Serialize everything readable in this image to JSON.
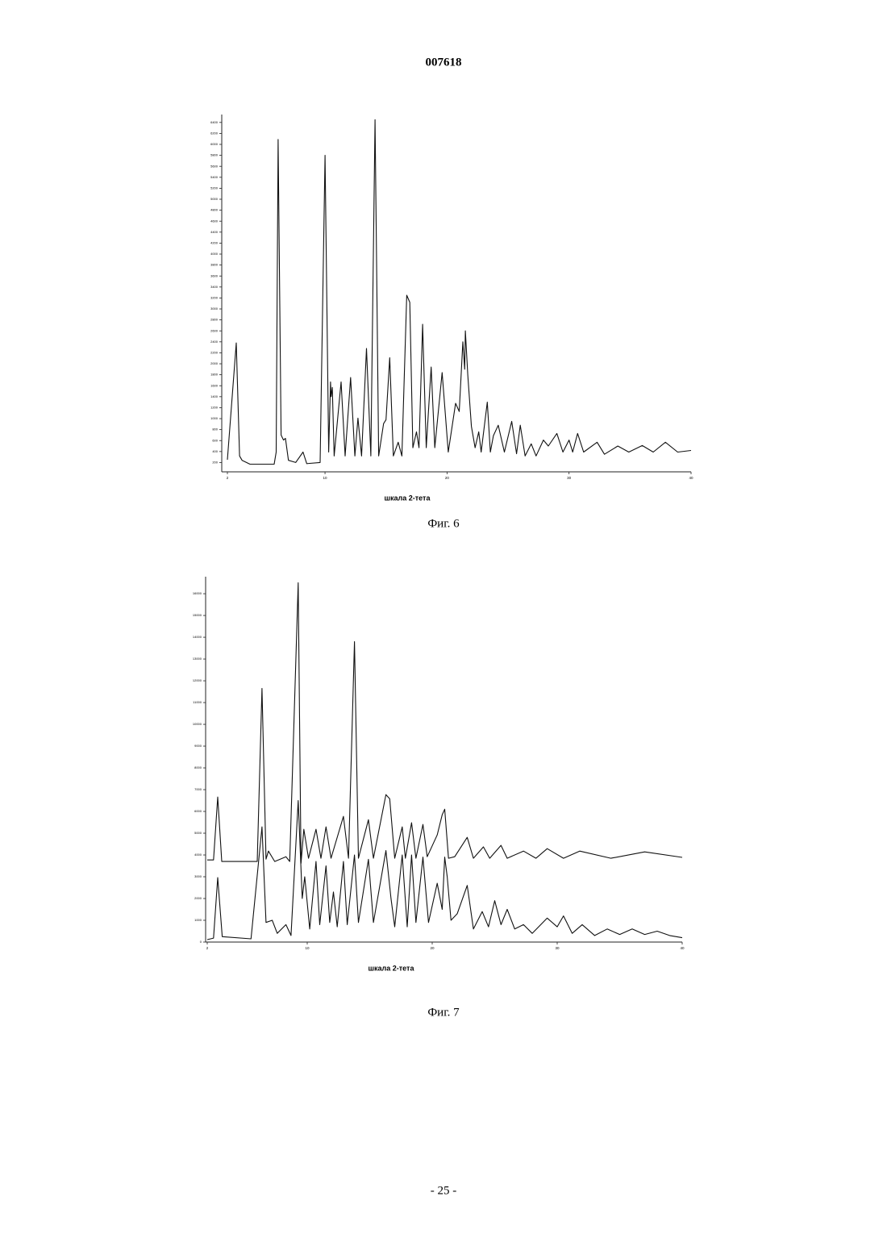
{
  "header": {
    "number": "007618"
  },
  "chart_data": [
    {
      "type": "line",
      "x_label": "шкала 2-тета",
      "caption": "Фиг. 6",
      "xlim": [
        2,
        40
      ],
      "xticks": [
        2,
        10,
        20,
        30,
        40
      ],
      "ylim": [
        30,
        6500
      ],
      "yticks": [
        200,
        400,
        600,
        800,
        1000,
        1200,
        1400,
        1600,
        1800,
        2000,
        2200,
        2400,
        2600,
        2800,
        3000,
        3200,
        3400,
        3600,
        3800,
        4000,
        4200,
        4400,
        4600,
        4800,
        5000,
        5200,
        5400,
        5600,
        5800,
        6000,
        6200,
        6400
      ],
      "series": [
        {
          "color": "#111111",
          "x": [
            2.0,
            2.73,
            3.0,
            3.2,
            3.85,
            5.83,
            6.0,
            6.16,
            6.4,
            6.6,
            6.76,
            7.0,
            7.6,
            8.2,
            8.5,
            9.6,
            10.0,
            10.3,
            10.45,
            10.5,
            10.6,
            10.75,
            11.32,
            11.65,
            12.1,
            12.45,
            12.7,
            13.0,
            13.4,
            13.76,
            14.1,
            14.4,
            14.8,
            15.0,
            15.3,
            15.6,
            16.0,
            16.3,
            16.7,
            16.95,
            17.2,
            17.5,
            17.7,
            18.0,
            18.3,
            18.7,
            19.0,
            19.6,
            20.1,
            20.7,
            21.0,
            21.3,
            21.45,
            21.5,
            21.7,
            22.0,
            22.3,
            22.6,
            22.8,
            23.3,
            23.55,
            23.8,
            24.2,
            24.7,
            25.3,
            25.7,
            26.0,
            26.4,
            26.9,
            27.3,
            27.9,
            28.3,
            29.0,
            29.5,
            30.0,
            30.3,
            30.7,
            31.2,
            32.3,
            32.9,
            34.0,
            34.9,
            36.0,
            36.9,
            37.9,
            38.9,
            40.0
          ],
          "values": [
            250,
            2380,
            320,
            240,
            170,
            170,
            390,
            6090,
            700,
            610,
            640,
            240,
            200,
            390,
            180,
            200,
            5800,
            390,
            1670,
            1400,
            1570,
            320,
            1670,
            320,
            1750,
            320,
            1010,
            320,
            2280,
            320,
            6450,
            320,
            910,
            980,
            2110,
            320,
            570,
            320,
            3250,
            3120,
            470,
            760,
            470,
            2720,
            470,
            1940,
            470,
            1840,
            390,
            1280,
            1130,
            2400,
            1900,
            2600,
            1800,
            860,
            470,
            760,
            390,
            1300,
            390,
            690,
            880,
            390,
            950,
            360,
            880,
            320,
            540,
            320,
            610,
            500,
            730,
            390,
            610,
            390,
            730,
            390,
            570,
            350,
            500,
            390,
            510,
            390,
            570,
            390,
            420
          ]
        }
      ]
    },
    {
      "type": "line",
      "x_label": "шкала 2-тета",
      "caption": "Фиг. 7",
      "xlim": [
        2,
        40
      ],
      "xticks": [
        2,
        10,
        20,
        30,
        40
      ],
      "ylim": [
        0,
        16670
      ],
      "yticks": [
        0,
        1000,
        2000,
        3000,
        4000,
        5000,
        6000,
        7000,
        8000,
        9000,
        10000,
        11000,
        12000,
        13000,
        14000,
        15000,
        16000
      ],
      "series": [
        {
          "color": "#111111",
          "x": [
            2,
            2.5,
            2.84,
            3.16,
            6.0,
            6.38,
            6.7,
            6.9,
            7.4,
            8.3,
            8.6,
            9.28,
            9.5,
            9.73,
            10.1,
            10.7,
            11.1,
            11.5,
            11.9,
            12.9,
            13.3,
            13.78,
            14.1,
            14.9,
            15.3,
            16.3,
            16.6,
            17.0,
            17.6,
            17.85,
            18.35,
            18.7,
            19.26,
            19.6,
            20.4,
            20.8,
            21.0,
            21.3,
            21.8,
            22.8,
            23.3,
            24.1,
            24.6,
            25.5,
            26.0,
            27.3,
            28.3,
            29.2,
            30.5,
            31.8,
            34.3,
            37.0,
            40.0
          ],
          "values": [
            3770,
            3770,
            6660,
            3700,
            3700,
            11650,
            3810,
            4180,
            3700,
            3920,
            3700,
            16500,
            3620,
            5180,
            3850,
            5180,
            3850,
            5290,
            3850,
            5770,
            3850,
            13800,
            3850,
            5620,
            3850,
            6770,
            6580,
            3850,
            5290,
            3850,
            5480,
            3850,
            5400,
            3920,
            4920,
            5850,
            6100,
            3850,
            3920,
            4810,
            3850,
            4370,
            3850,
            4440,
            3850,
            4180,
            3850,
            4290,
            3850,
            4180,
            3850,
            4140,
            3890
          ]
        },
        {
          "color": "#111111",
          "x": [
            2,
            2.5,
            2.84,
            3.2,
            5.5,
            6.38,
            6.7,
            7.2,
            7.6,
            8.3,
            8.7,
            9.28,
            9.6,
            9.8,
            10.2,
            10.7,
            11.0,
            11.5,
            11.8,
            12.1,
            12.4,
            12.9,
            13.2,
            13.78,
            14.1,
            14.9,
            15.3,
            16.3,
            16.7,
            17.0,
            17.6,
            18.0,
            18.35,
            18.7,
            19.26,
            19.7,
            20.4,
            20.8,
            21.0,
            21.2,
            21.5,
            22.0,
            22.8,
            23.3,
            24.0,
            24.5,
            25.0,
            25.5,
            26.0,
            26.6,
            27.3,
            28.0,
            29.2,
            30.0,
            30.5,
            31.2,
            32.0,
            33.0,
            34.0,
            35.0,
            36.0,
            37.0,
            38.0,
            39.0,
            40.0
          ],
          "values": [
            110,
            180,
            2960,
            250,
            150,
            5290,
            900,
            1000,
            400,
            800,
            300,
            6500,
            2000,
            3000,
            600,
            3700,
            800,
            3500,
            900,
            2300,
            700,
            3700,
            800,
            4000,
            900,
            3800,
            900,
            4200,
            2000,
            700,
            4000,
            700,
            4000,
            900,
            3900,
            900,
            2700,
            1500,
            3900,
            3000,
            1000,
            1300,
            2600,
            600,
            1400,
            700,
            1900,
            800,
            1500,
            600,
            800,
            400,
            1100,
            700,
            1200,
            400,
            800,
            300,
            600,
            350,
            600,
            350,
            500,
            300,
            200
          ]
        }
      ]
    }
  ],
  "footer": {
    "page": "- 25 -"
  }
}
